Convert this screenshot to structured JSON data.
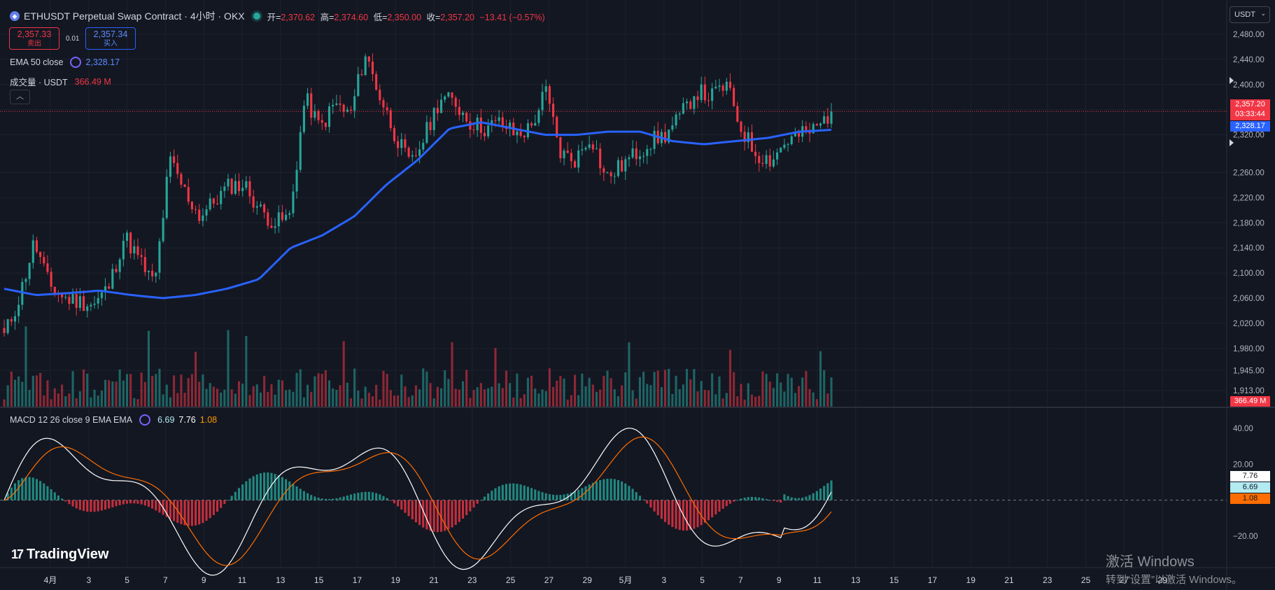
{
  "header": {
    "symbol": "ETHUSDT Perpetual Swap Contract · 4小时 · OKX",
    "ohlc": {
      "open_label": "开=",
      "open": "2,370.62",
      "high_label": "高=",
      "high": "2,374.60",
      "low_label": "低=",
      "low": "2,350.00",
      "close_label": "收=",
      "close": "2,357.20",
      "change": "−13.41 (−0.57%)"
    }
  },
  "trade": {
    "sell_price": "2,357.33",
    "sell_label": "卖出",
    "spread": "0.01",
    "buy_price": "2,357.34",
    "buy_label": "买入"
  },
  "indicators": {
    "ema_label": "EMA 50 close",
    "ema_value": "2,328.17",
    "volume_label": "成交量 · USDT",
    "volume_value": "366.49 M",
    "collapse_icon": "chevron-up-icon"
  },
  "macd": {
    "label": "MACD 12 26 close 9 EMA EMA",
    "macd_value": "6.69",
    "signal_value": "7.76",
    "hist_value": "1.08"
  },
  "price_axis": {
    "currency": "USDT",
    "ticks": [
      "2,480.00",
      "2,440.00",
      "2,400.00",
      "2,357.20",
      "2,320.00",
      "2,260.00",
      "2,220.00",
      "2,180.00",
      "2,140.00",
      "2,100.00",
      "2,060.00",
      "2,020.00",
      "1,980.00",
      "1,945.00",
      "1,913.00"
    ],
    "last_price": "2,357.20",
    "countdown": "03:33:44",
    "ema_tag": "2,328.17",
    "volume_tag": "366.49 M"
  },
  "macd_axis": {
    "ticks": [
      "40.00",
      "20.00",
      "−20.00"
    ],
    "signal_tag": "7.76",
    "macd_tag": "6.69",
    "hist_tag": "1.08"
  },
  "time_axis": {
    "labels": [
      "4月",
      "3",
      "5",
      "7",
      "9",
      "11",
      "13",
      "15",
      "17",
      "19",
      "21",
      "23",
      "25",
      "27",
      "29",
      "5月",
      "3",
      "5",
      "7",
      "9",
      "11",
      "13",
      "15",
      "17",
      "19",
      "21",
      "23",
      "25",
      "27",
      "29"
    ]
  },
  "branding": {
    "logo": "TradingView"
  },
  "watermark": {
    "line1": "激活 Windows",
    "line2": "转到“设置”以激活 Windows。"
  },
  "colors": {
    "background": "#131722",
    "up": "#26a69a",
    "down": "#f23645",
    "ema": "#2962ff",
    "macd_line": "#ffffff",
    "signal_line": "#ff6d00"
  },
  "chart_data": {
    "type": "candlestick",
    "timeframe": "4h",
    "x_range": [
      "Apr 1",
      "May 11"
    ],
    "ylim": [
      1913,
      2480
    ],
    "anchors_close": [
      2000,
      2060,
      2150,
      2080,
      2060,
      2055,
      2050,
      2080,
      2160,
      2120,
      2080,
      2280,
      2230,
      2190,
      2215,
      2240,
      2240,
      2200,
      2180,
      2190,
      2380,
      2330,
      2370,
      2350,
      2450,
      2380,
      2320,
      2270,
      2320,
      2380,
      2370,
      2340,
      2330,
      2340,
      2320,
      2330,
      2390,
      2290,
      2280,
      2320,
      2250,
      2270,
      2290,
      2310,
      2320,
      2350,
      2390,
      2380,
      2400,
      2330,
      2290,
      2280,
      2310,
      2320,
      2330,
      2357
    ],
    "ema50_anchor": [
      2075,
      2065,
      2068,
      2072,
      2065,
      2060,
      2065,
      2075,
      2090,
      2140,
      2160,
      2190,
      2240,
      2280,
      2330,
      2340,
      2330,
      2320,
      2320,
      2325,
      2325,
      2310,
      2305,
      2310,
      2315,
      2325,
      2328
    ]
  }
}
